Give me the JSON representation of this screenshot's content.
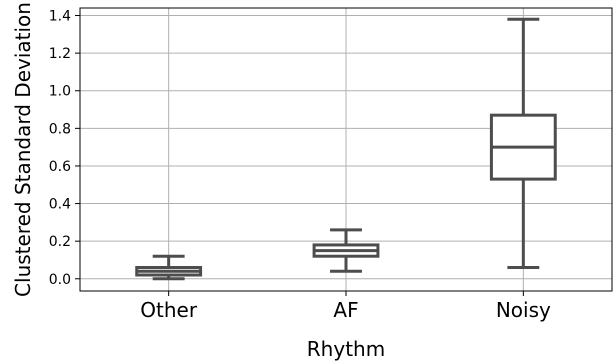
{
  "chart_data": {
    "type": "box",
    "xlabel": "Rhythm",
    "ylabel": "Clustered Standard Deviation",
    "categories": [
      "Other",
      "AF",
      "Noisy"
    ],
    "boxes": [
      {
        "category": "Other",
        "whisker_low": 0.0,
        "q1": 0.02,
        "median": 0.04,
        "q3": 0.06,
        "whisker_high": 0.12
      },
      {
        "category": "AF",
        "whisker_low": 0.04,
        "q1": 0.12,
        "median": 0.15,
        "q3": 0.18,
        "whisker_high": 0.26
      },
      {
        "category": "Noisy",
        "whisker_low": 0.06,
        "q1": 0.53,
        "median": 0.7,
        "q3": 0.87,
        "whisker_high": 1.38
      }
    ],
    "ylim": [
      -0.065,
      1.44
    ],
    "yticks": [
      0.0,
      0.2,
      0.4,
      0.6,
      0.8,
      1.0,
      1.2,
      1.4
    ],
    "ytick_labels": [
      "0.0",
      "0.2",
      "0.4",
      "0.6",
      "0.8",
      "1.0",
      "1.2",
      "1.4"
    ],
    "grid": true,
    "box_color": "#4d4d4d"
  }
}
